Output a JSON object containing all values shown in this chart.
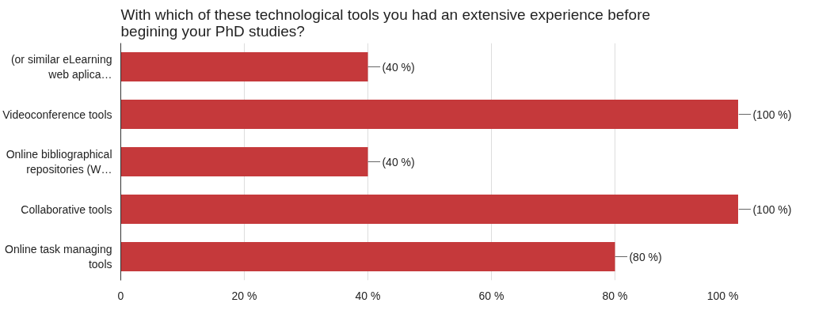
{
  "chart_data": {
    "type": "bar",
    "orientation": "horizontal",
    "title": "With which of these technological tools you had an extensive experience before begining your PhD studies?",
    "categories": [
      "(or similar eLearning web aplica…",
      "Videoconference tools",
      "Online bibliographical repositories (W…",
      "Collaborative tools",
      "Online task managing tools"
    ],
    "values": [
      40,
      100,
      40,
      100,
      80
    ],
    "value_labels": [
      "(40 %)",
      "(100 %)",
      "(40 %)",
      "(100 %)",
      "(80 %)"
    ],
    "color": "#c5393b",
    "xlim": [
      0,
      100
    ],
    "xticks": [
      0,
      {
        "value": 20,
        "label": "20 %"
      },
      {
        "value": 40,
        "label": "40 %"
      },
      {
        "value": 60,
        "label": "60 %"
      },
      {
        "value": 80,
        "label": "80 %"
      },
      {
        "value": 100,
        "label": "100 %"
      }
    ],
    "grid": "x"
  }
}
